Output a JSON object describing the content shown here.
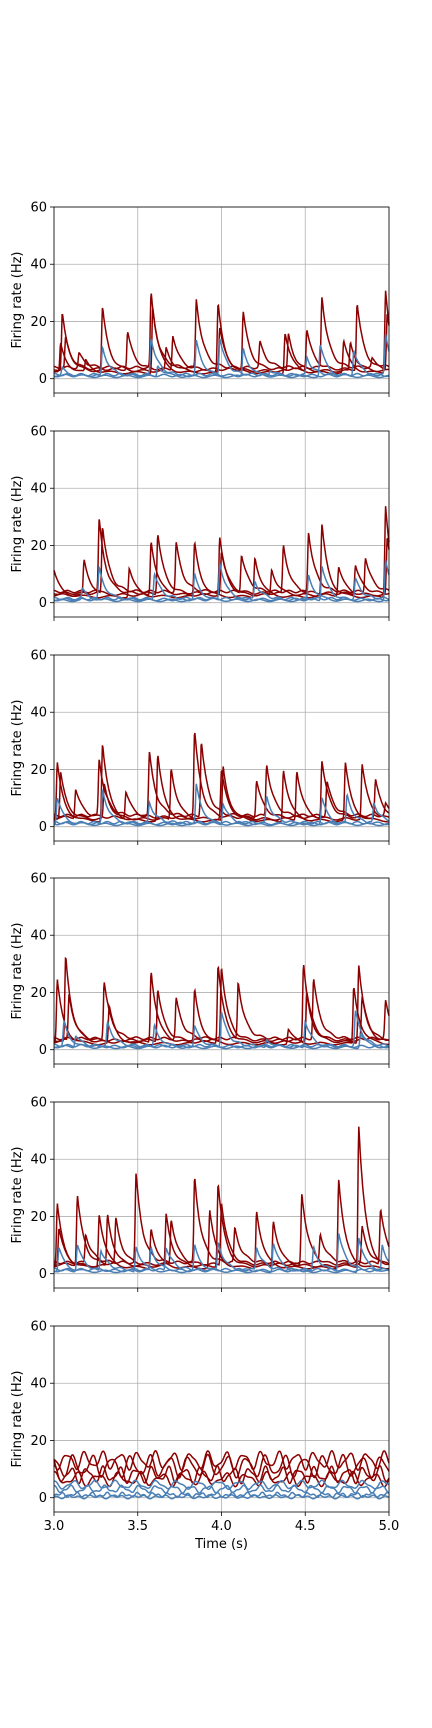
{
  "colors": {
    "red": "#8b0000",
    "blue": "#4a7fb5",
    "grid": "#b0b0b0"
  },
  "chart_data": [
    {
      "type": "line",
      "ylabel": "Firing rate (Hz)",
      "xlabel": "",
      "xlim": [
        3.0,
        5.0
      ],
      "ylim": [
        -5,
        60
      ],
      "grid": true,
      "xticks": [
        3.0,
        3.5,
        4.0,
        4.5,
        5.0
      ],
      "yticks": [
        0,
        20,
        40,
        60
      ],
      "red_peaks": [
        [
          3.04,
          10
        ],
        [
          3.05,
          20
        ],
        [
          3.07,
          11
        ],
        [
          3.15,
          5
        ],
        [
          3.19,
          4
        ],
        [
          3.29,
          22
        ],
        [
          3.44,
          13
        ],
        [
          3.58,
          26
        ],
        [
          3.59,
          23
        ],
        [
          3.67,
          8
        ],
        [
          3.71,
          12
        ],
        [
          3.85,
          24
        ],
        [
          3.98,
          24
        ],
        [
          3.99,
          15
        ],
        [
          4.13,
          20
        ],
        [
          4.23,
          9
        ],
        [
          4.38,
          14
        ],
        [
          4.4,
          13
        ],
        [
          4.51,
          14
        ],
        [
          4.6,
          25
        ],
        [
          4.73,
          11
        ],
        [
          4.77,
          10
        ],
        [
          4.81,
          23
        ],
        [
          4.9,
          3
        ],
        [
          4.98,
          29
        ],
        [
          4.99,
          20
        ]
      ],
      "blue_peaks": [
        [
          3.05,
          3
        ],
        [
          3.29,
          10
        ],
        [
          3.58,
          13
        ],
        [
          3.62,
          4
        ],
        [
          3.85,
          12
        ],
        [
          3.99,
          13
        ],
        [
          4.13,
          10
        ],
        [
          4.29,
          2
        ],
        [
          4.51,
          6
        ],
        [
          4.59,
          11
        ],
        [
          4.79,
          9
        ],
        [
          4.98,
          14
        ]
      ]
    },
    {
      "type": "line",
      "ylabel": "Firing rate (Hz)",
      "xlabel": "",
      "xlim": [
        3.0,
        5.0
      ],
      "ylim": [
        -5,
        60
      ],
      "grid": true,
      "xticks": [
        3.0,
        3.5,
        4.0,
        4.5,
        5.0
      ],
      "yticks": [
        0,
        20,
        40,
        60
      ],
      "red_peaks": [
        [
          3.0,
          9
        ],
        [
          3.18,
          12
        ],
        [
          3.27,
          26
        ],
        [
          3.29,
          23
        ],
        [
          3.45,
          10
        ],
        [
          3.58,
          19
        ],
        [
          3.62,
          21
        ],
        [
          3.73,
          17
        ],
        [
          3.84,
          19
        ],
        [
          3.99,
          20
        ],
        [
          4.0,
          15
        ],
        [
          4.12,
          13
        ],
        [
          4.2,
          14
        ],
        [
          4.3,
          9
        ],
        [
          4.37,
          17
        ],
        [
          4.52,
          21
        ],
        [
          4.6,
          25
        ],
        [
          4.7,
          10
        ],
        [
          4.8,
          10
        ],
        [
          4.86,
          12
        ],
        [
          4.98,
          32
        ],
        [
          4.99,
          20
        ]
      ],
      "blue_peaks": [
        [
          3.17,
          4
        ],
        [
          3.27,
          11
        ],
        [
          3.6,
          9
        ],
        [
          3.84,
          9
        ],
        [
          3.99,
          13
        ],
        [
          4.2,
          6
        ],
        [
          4.52,
          9
        ],
        [
          4.6,
          12
        ],
        [
          4.8,
          7
        ],
        [
          4.98,
          14
        ]
      ]
    },
    {
      "type": "line",
      "ylabel": "Firing rate (Hz)",
      "xlabel": "",
      "xlim": [
        3.0,
        5.0
      ],
      "ylim": [
        -5,
        60
      ],
      "grid": true,
      "xticks": [
        3.0,
        3.5,
        4.0,
        4.5,
        5.0
      ],
      "yticks": [
        0,
        20,
        40,
        60
      ],
      "red_peaks": [
        [
          3.02,
          20
        ],
        [
          3.04,
          16
        ],
        [
          3.13,
          10
        ],
        [
          3.27,
          20
        ],
        [
          3.29,
          27
        ],
        [
          3.3,
          12
        ],
        [
          3.43,
          9
        ],
        [
          3.57,
          22
        ],
        [
          3.62,
          23
        ],
        [
          3.7,
          18
        ],
        [
          3.84,
          30
        ],
        [
          3.88,
          26
        ],
        [
          4.01,
          19
        ],
        [
          4.0,
          17
        ],
        [
          4.21,
          13
        ],
        [
          4.27,
          18
        ],
        [
          4.37,
          18
        ],
        [
          4.45,
          17
        ],
        [
          4.6,
          20
        ],
        [
          4.63,
          12
        ],
        [
          4.74,
          20
        ],
        [
          4.84,
          19
        ],
        [
          4.92,
          13
        ],
        [
          4.98,
          4
        ]
      ],
      "blue_peaks": [
        [
          3.02,
          9
        ],
        [
          3.29,
          12
        ],
        [
          3.57,
          7
        ],
        [
          3.85,
          14
        ],
        [
          4.01,
          7
        ],
        [
          4.27,
          9
        ],
        [
          4.6,
          9
        ],
        [
          4.75,
          10
        ],
        [
          4.91,
          7
        ]
      ]
    },
    {
      "type": "line",
      "ylabel": "Firing rate (Hz)",
      "xlabel": "",
      "xlim": [
        3.0,
        5.0
      ],
      "ylim": [
        -5,
        60
      ],
      "grid": true,
      "xticks": [
        3.0,
        3.5,
        4.0,
        4.5,
        5.0
      ],
      "yticks": [
        0,
        20,
        40,
        60
      ],
      "red_peaks": [
        [
          3.02,
          22
        ],
        [
          3.07,
          30
        ],
        [
          3.09,
          16
        ],
        [
          3.3,
          20
        ],
        [
          3.33,
          13
        ],
        [
          3.58,
          25
        ],
        [
          3.62,
          18
        ],
        [
          3.73,
          14
        ],
        [
          3.84,
          19
        ],
        [
          3.98,
          27
        ],
        [
          4.0,
          26
        ],
        [
          4.1,
          20
        ],
        [
          4.4,
          5
        ],
        [
          4.49,
          27
        ],
        [
          4.51,
          17
        ],
        [
          4.55,
          21
        ],
        [
          4.79,
          20
        ],
        [
          4.82,
          27
        ],
        [
          4.84,
          15
        ],
        [
          4.98,
          13
        ]
      ],
      "blue_peaks": [
        [
          3.06,
          9
        ],
        [
          3.13,
          4
        ],
        [
          3.32,
          8
        ],
        [
          3.6,
          8
        ],
        [
          3.84,
          7
        ],
        [
          4.0,
          12
        ],
        [
          4.27,
          3
        ],
        [
          4.5,
          9
        ],
        [
          4.8,
          12
        ],
        [
          4.83,
          5
        ]
      ]
    },
    {
      "type": "line",
      "ylabel": "Firing rate (Hz)",
      "xlabel": "",
      "xlim": [
        3.0,
        5.0
      ],
      "ylim": [
        -5,
        60
      ],
      "grid": true,
      "xticks": [
        3.0,
        3.5,
        4.0,
        4.5,
        5.0
      ],
      "yticks": [
        0,
        20,
        40,
        60
      ],
      "red_peaks": [
        [
          3.02,
          22
        ],
        [
          3.03,
          13
        ],
        [
          3.14,
          24
        ],
        [
          3.19,
          10
        ],
        [
          3.27,
          19
        ],
        [
          3.32,
          18
        ],
        [
          3.37,
          16
        ],
        [
          3.49,
          31
        ],
        [
          3.58,
          14
        ],
        [
          3.67,
          18
        ],
        [
          3.7,
          16
        ],
        [
          3.84,
          30
        ],
        [
          3.93,
          20
        ],
        [
          3.98,
          29
        ],
        [
          4.0,
          22
        ],
        [
          4.08,
          12
        ],
        [
          4.21,
          20
        ],
        [
          4.31,
          16
        ],
        [
          4.48,
          25
        ],
        [
          4.59,
          10
        ],
        [
          4.7,
          31
        ],
        [
          4.82,
          49
        ],
        [
          4.84,
          13
        ],
        [
          4.95,
          19
        ]
      ],
      "blue_peaks": [
        [
          3.03,
          8
        ],
        [
          3.14,
          9
        ],
        [
          3.28,
          7
        ],
        [
          3.49,
          9
        ],
        [
          3.58,
          8
        ],
        [
          3.67,
          8
        ],
        [
          3.84,
          9
        ],
        [
          3.98,
          10
        ],
        [
          4.21,
          8
        ],
        [
          4.31,
          10
        ],
        [
          4.55,
          8
        ],
        [
          4.7,
          13
        ],
        [
          4.82,
          12
        ],
        [
          4.96,
          9
        ]
      ]
    },
    {
      "type": "line",
      "ylabel": "Firing rate (Hz)",
      "xlabel": "Time (s)",
      "xlim": [
        3.0,
        5.0
      ],
      "ylim": [
        -5,
        60
      ],
      "grid": true,
      "xticks": [
        3.0,
        3.5,
        4.0,
        4.5,
        5.0
      ],
      "xticklabels": [
        "3.0",
        "3.5",
        "4.0",
        "4.5",
        "5.0"
      ],
      "yticks": [
        0,
        20,
        40,
        60
      ],
      "red_lines": [
        {
          "base": 13,
          "amp": 2.5,
          "freq": 9.5
        },
        {
          "base": 11,
          "amp": 3.2,
          "freq": 8.7
        },
        {
          "base": 8,
          "amp": 2.2,
          "freq": 10.3
        },
        {
          "base": 6.5,
          "amp": 1.8,
          "freq": 7.9
        }
      ],
      "blue_lines": [
        {
          "base": 4.5,
          "amp": 1.2,
          "freq": 8.1
        },
        {
          "base": 3,
          "amp": 1.0,
          "freq": 9.7
        },
        {
          "base": 1,
          "amp": 0.5,
          "freq": 10.8
        },
        {
          "base": 0.3,
          "amp": 0.3,
          "freq": 7.3
        }
      ]
    }
  ]
}
